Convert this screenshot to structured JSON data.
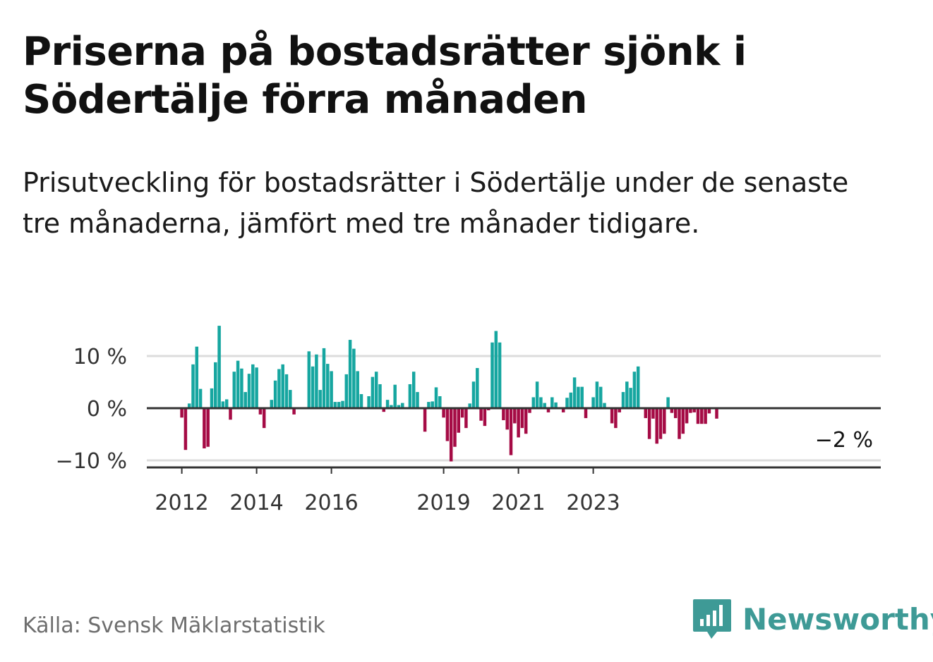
{
  "header": {
    "title": "Priserna på bostadsrätter sjönk i Södertälje förra månaden",
    "subtitle": "Prisutveckling för bostadsrätter i Södertälje under de senaste tre månaderna, jämfört med tre månader tidigare."
  },
  "footer": {
    "source": "Källa: Svensk Mäklarstatistik",
    "brand": "Newsworthy",
    "brand_icon": "bar-chart-bubble-icon"
  },
  "colors": {
    "positive": "#16a6a0",
    "negative": "#a50b45",
    "grid": "#dcdcdc",
    "axis": "#333333",
    "brand": "#3e9a96"
  },
  "chart_data": {
    "type": "bar",
    "title": "",
    "xlabel": "",
    "ylabel": "",
    "ylim": [
      -12,
      17
    ],
    "y_ticks": [
      {
        "value": 10,
        "label": "10 %"
      },
      {
        "value": 0,
        "label": "0 %"
      },
      {
        "value": -10,
        "label": "−10 %"
      }
    ],
    "x_ticks": [
      {
        "index": 0,
        "label": "2012"
      },
      {
        "index": 20,
        "label": "2014"
      },
      {
        "index": 40,
        "label": "2016"
      },
      {
        "index": 70,
        "label": "2019"
      },
      {
        "index": 90,
        "label": "2021"
      },
      {
        "index": 110,
        "label": "2023"
      }
    ],
    "start": "2012-01",
    "last_value_label": "−2 %",
    "values": [
      -1.8,
      -8,
      0.9,
      8.4,
      11.8,
      3.7,
      -7.7,
      -7.4,
      3.8,
      8.8,
      15.8,
      1.3,
      1.7,
      -2.2,
      7,
      9.1,
      7.6,
      3.1,
      6.6,
      8.4,
      7.8,
      -1.2,
      -3.8,
      0,
      1.6,
      5.3,
      7.5,
      8.4,
      6.5,
      3.5,
      -1.2,
      0,
      0,
      0,
      10.9,
      8,
      10.3,
      3.5,
      11.5,
      8.5,
      7.1,
      1.2,
      1.2,
      1.4,
      6.5,
      13.1,
      11.4,
      7.1,
      2.7,
      0,
      2.3,
      6,
      7,
      4.6,
      -0.7,
      1.6,
      0.6,
      4.5,
      0.6,
      1,
      0,
      4.6,
      7,
      3.1,
      0,
      -4.5,
      1.2,
      1.3,
      4,
      2.3,
      -1.8,
      -6.3,
      -10.2,
      -7.4,
      -4.7,
      -1.8,
      -3.8,
      0.9,
      5.1,
      7.7,
      -2.4,
      -3.4,
      -0.4,
      12.6,
      14.8,
      12.6,
      -2.3,
      -4.1,
      -9,
      -2.9,
      -5.6,
      -3.8,
      -4.9,
      -0.9,
      2.1,
      5.1,
      2.1,
      1,
      -0.8,
      2.1,
      1.1,
      0,
      -0.8,
      2,
      3,
      5.9,
      4.1,
      4.1,
      -1.9,
      0,
      2.1,
      5.1,
      4.1,
      1,
      0,
      -2.9,
      -3.8,
      -0.8,
      3.1,
      5.1,
      3.9,
      7,
      8,
      0,
      -1.9,
      -5.9,
      -2,
      -6.8,
      -5.9,
      -4.9,
      2.1,
      -0.9,
      -1.9,
      -5.9,
      -4.9,
      -2.9,
      -0.9,
      -0.8,
      -3,
      -3,
      -3,
      -1,
      0,
      -2
    ]
  }
}
